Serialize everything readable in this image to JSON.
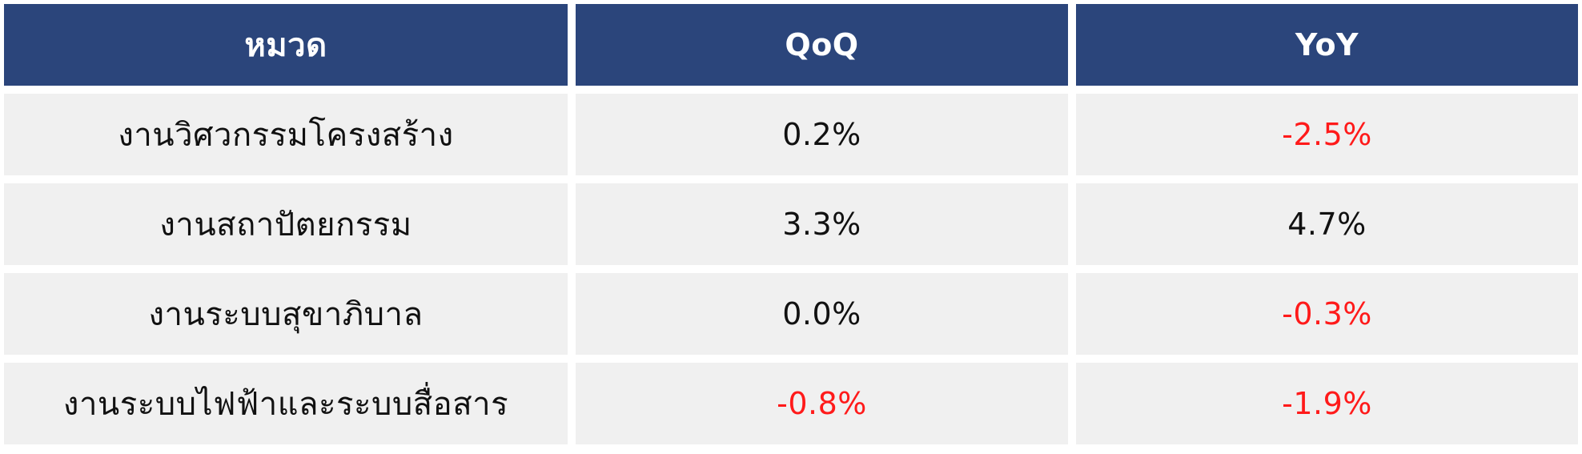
{
  "table": {
    "headers": [
      "หมวด",
      "QoQ",
      "YoY"
    ],
    "rows": [
      {
        "category": "งานวิศวกรรมโครงสร้าง",
        "qoq": "0.2%",
        "yoy": "-2.5%"
      },
      {
        "category": "งานสถาปัตยกรรม",
        "qoq": "3.3%",
        "yoy": "4.7%"
      },
      {
        "category": "งานระบบสุขาภิบาล",
        "qoq": "0.0%",
        "yoy": "-0.3%"
      },
      {
        "category": "งานระบบไฟฟ้าและระบบสื่อสาร",
        "qoq": "-0.8%",
        "yoy": "-1.9%"
      }
    ]
  },
  "colors": {
    "header_bg": "#2b457b",
    "header_text": "#ffffff",
    "cell_bg": "#f0f0f0",
    "text": "#111111",
    "negative": "#ff1a1a"
  }
}
